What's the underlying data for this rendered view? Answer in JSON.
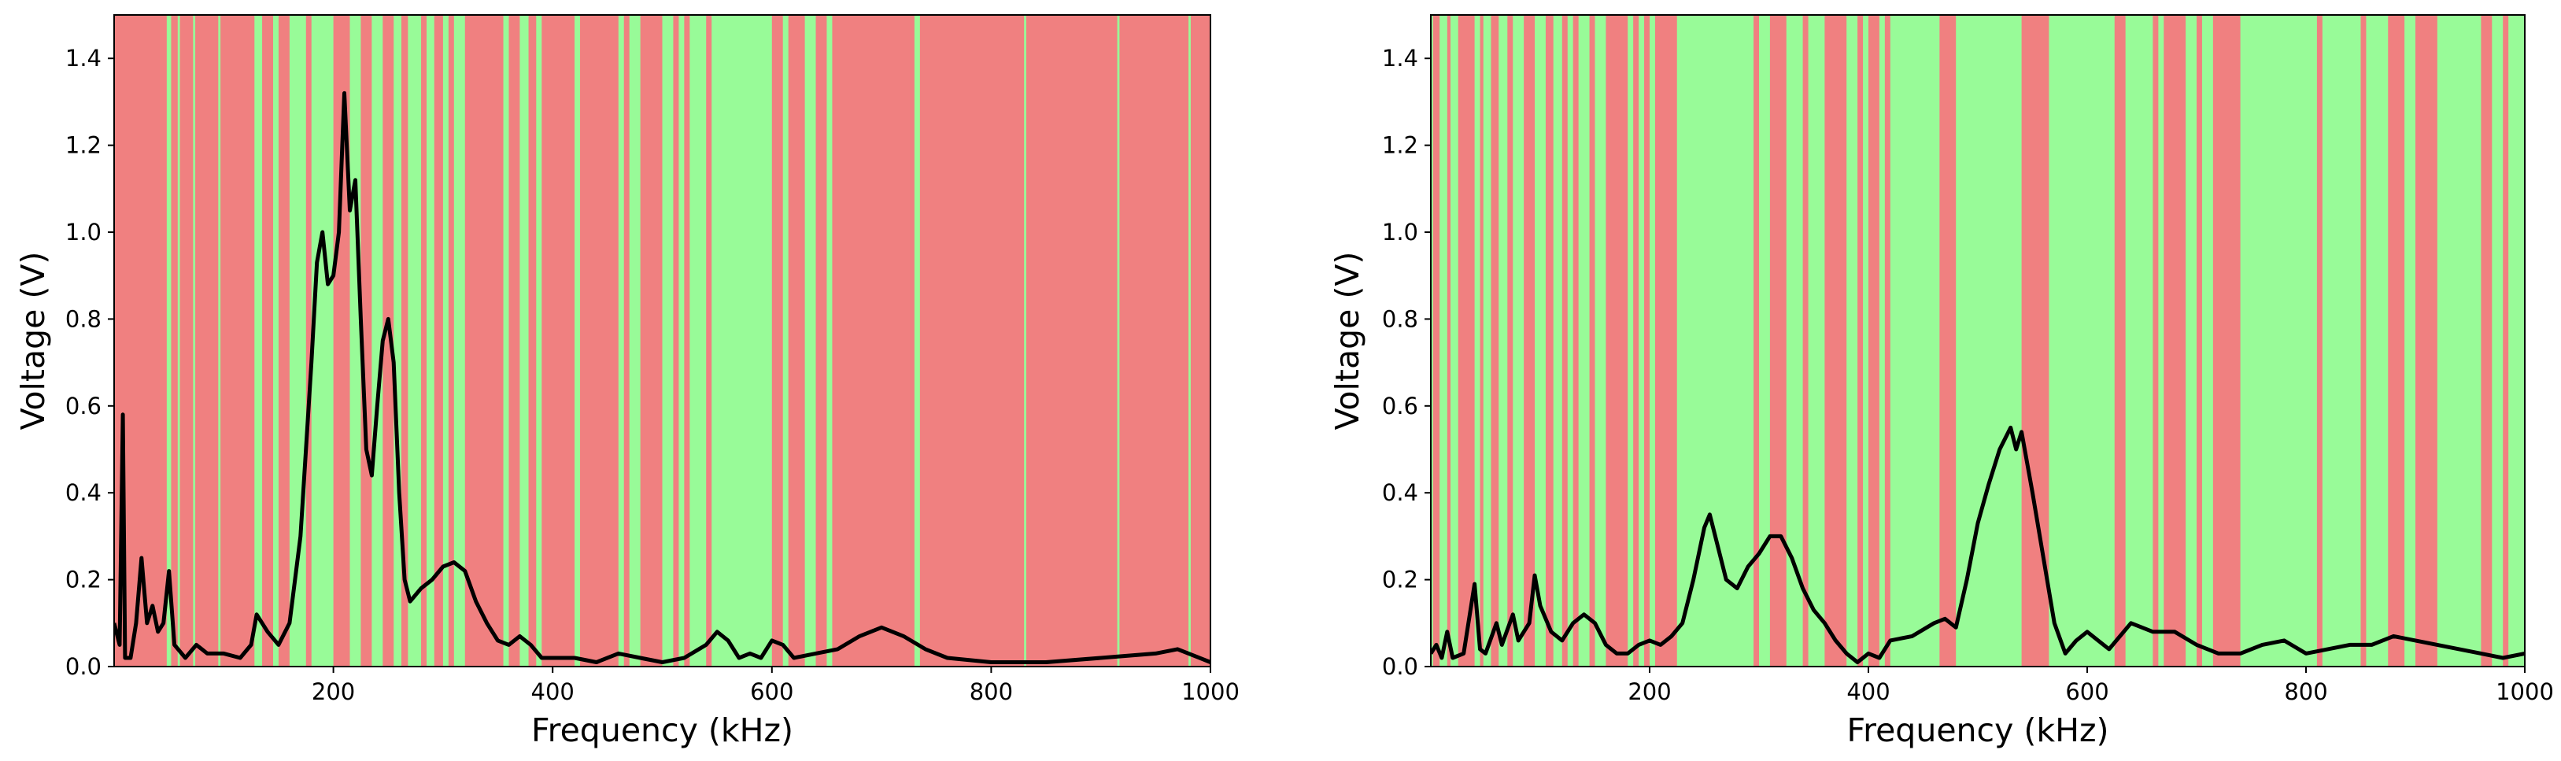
{
  "chart_data": [
    {
      "type": "line",
      "xlabel": "Frequency (kHz)",
      "ylabel": "Voltage (V)",
      "xlim": [
        0,
        1000
      ],
      "ylim": [
        0,
        1.5
      ],
      "xticks": [
        200,
        400,
        600,
        800,
        1000
      ],
      "yticks": [
        {
          "value": 0,
          "label": "0.0"
        },
        {
          "value": 0.2,
          "label": "0.2"
        },
        {
          "value": 0.4,
          "label": "0.4"
        },
        {
          "value": 0.6,
          "label": "0.6"
        },
        {
          "value": 0.8,
          "label": "0.8"
        },
        {
          "value": 1.0,
          "label": "1.0"
        },
        {
          "value": 1.2,
          "label": "1.2"
        },
        {
          "value": 1.4,
          "label": "1.4"
        }
      ],
      "background_color": "#f08080",
      "region_color": "#98fb98",
      "regions": [
        [
          48,
          52
        ],
        [
          58,
          60
        ],
        [
          72,
          74
        ],
        [
          95,
          97
        ],
        [
          128,
          135
        ],
        [
          145,
          150
        ],
        [
          160,
          175
        ],
        [
          180,
          200
        ],
        [
          215,
          225
        ],
        [
          235,
          245
        ],
        [
          255,
          262
        ],
        [
          268,
          280
        ],
        [
          285,
          292
        ],
        [
          300,
          305
        ],
        [
          310,
          320
        ],
        [
          355,
          360
        ],
        [
          370,
          378
        ],
        [
          385,
          390
        ],
        [
          420,
          425
        ],
        [
          460,
          465
        ],
        [
          470,
          480
        ],
        [
          500,
          510
        ],
        [
          515,
          520
        ],
        [
          525,
          540
        ],
        [
          545,
          600
        ],
        [
          610,
          615
        ],
        [
          630,
          640
        ],
        [
          650,
          655
        ],
        [
          730,
          735
        ],
        [
          830,
          832
        ],
        [
          915,
          917
        ],
        [
          980,
          982
        ]
      ],
      "color": "#000000",
      "x": [
        0,
        5,
        8,
        10,
        15,
        20,
        25,
        30,
        35,
        40,
        45,
        50,
        55,
        65,
        75,
        85,
        100,
        115,
        125,
        130,
        140,
        150,
        160,
        170,
        180,
        185,
        190,
        195,
        200,
        205,
        210,
        215,
        220,
        225,
        230,
        235,
        240,
        245,
        250,
        255,
        260,
        265,
        270,
        280,
        290,
        300,
        310,
        320,
        330,
        340,
        350,
        360,
        370,
        380,
        390,
        400,
        420,
        440,
        460,
        480,
        500,
        520,
        540,
        550,
        560,
        570,
        580,
        590,
        600,
        610,
        620,
        640,
        660,
        680,
        700,
        720,
        740,
        760,
        800,
        850,
        900,
        950,
        970,
        1000
      ],
      "values": [
        0.1,
        0.05,
        0.58,
        0.02,
        0.02,
        0.1,
        0.25,
        0.1,
        0.14,
        0.08,
        0.1,
        0.22,
        0.05,
        0.02,
        0.05,
        0.03,
        0.03,
        0.02,
        0.05,
        0.12,
        0.08,
        0.05,
        0.1,
        0.3,
        0.7,
        0.93,
        1.0,
        0.88,
        0.9,
        1.0,
        1.32,
        1.05,
        1.12,
        0.8,
        0.5,
        0.44,
        0.6,
        0.75,
        0.8,
        0.7,
        0.4,
        0.2,
        0.15,
        0.18,
        0.2,
        0.23,
        0.24,
        0.22,
        0.15,
        0.1,
        0.06,
        0.05,
        0.07,
        0.05,
        0.02,
        0.02,
        0.02,
        0.01,
        0.03,
        0.02,
        0.01,
        0.02,
        0.05,
        0.08,
        0.06,
        0.02,
        0.03,
        0.02,
        0.06,
        0.05,
        0.02,
        0.03,
        0.04,
        0.07,
        0.09,
        0.07,
        0.04,
        0.02,
        0.01,
        0.01,
        0.02,
        0.03,
        0.04,
        0.01
      ]
    },
    {
      "type": "line",
      "xlabel": "Frequency (kHz)",
      "ylabel": "Voltage (V)",
      "xlim": [
        0,
        1000
      ],
      "ylim": [
        0,
        1.5
      ],
      "xticks": [
        200,
        400,
        600,
        800,
        1000
      ],
      "yticks": [
        {
          "value": 0,
          "label": "0.0"
        },
        {
          "value": 0.2,
          "label": "0.2"
        },
        {
          "value": 0.4,
          "label": "0.4"
        },
        {
          "value": 0.6,
          "label": "0.6"
        },
        {
          "value": 0.8,
          "label": "0.8"
        },
        {
          "value": 1.0,
          "label": "1.0"
        },
        {
          "value": 1.2,
          "label": "1.2"
        },
        {
          "value": 1.4,
          "label": "1.4"
        }
      ],
      "background_color": "#98fb98",
      "region_color": "#f08080",
      "regions": [
        [
          2,
          8
        ],
        [
          15,
          18
        ],
        [
          25,
          40
        ],
        [
          45,
          48
        ],
        [
          55,
          62
        ],
        [
          70,
          75
        ],
        [
          85,
          95
        ],
        [
          105,
          112
        ],
        [
          120,
          125
        ],
        [
          130,
          135
        ],
        [
          145,
          150
        ],
        [
          160,
          180
        ],
        [
          185,
          190
        ],
        [
          195,
          200
        ],
        [
          205,
          225
        ],
        [
          295,
          300
        ],
        [
          310,
          325
        ],
        [
          340,
          345
        ],
        [
          360,
          380
        ],
        [
          390,
          395
        ],
        [
          400,
          410
        ],
        [
          415,
          420
        ],
        [
          465,
          480
        ],
        [
          540,
          565
        ],
        [
          625,
          635
        ],
        [
          660,
          665
        ],
        [
          670,
          690
        ],
        [
          700,
          705
        ],
        [
          715,
          740
        ],
        [
          810,
          815
        ],
        [
          850,
          855
        ],
        [
          875,
          890
        ],
        [
          900,
          920
        ],
        [
          960,
          970
        ],
        [
          980,
          985
        ]
      ],
      "color": "#000000",
      "x": [
        0,
        5,
        10,
        15,
        20,
        30,
        40,
        45,
        50,
        60,
        65,
        75,
        80,
        90,
        95,
        100,
        110,
        120,
        130,
        140,
        150,
        160,
        170,
        180,
        190,
        200,
        210,
        220,
        230,
        240,
        250,
        255,
        260,
        270,
        280,
        290,
        300,
        310,
        320,
        330,
        340,
        350,
        360,
        370,
        380,
        390,
        400,
        410,
        420,
        440,
        460,
        470,
        480,
        490,
        500,
        510,
        520,
        530,
        535,
        540,
        550,
        560,
        570,
        580,
        590,
        600,
        610,
        620,
        640,
        660,
        680,
        700,
        720,
        740,
        760,
        780,
        800,
        820,
        840,
        860,
        880,
        900,
        920,
        940,
        960,
        980,
        1000
      ],
      "values": [
        0.03,
        0.05,
        0.02,
        0.08,
        0.02,
        0.03,
        0.19,
        0.04,
        0.03,
        0.1,
        0.05,
        0.12,
        0.06,
        0.1,
        0.21,
        0.14,
        0.08,
        0.06,
        0.1,
        0.12,
        0.1,
        0.05,
        0.03,
        0.03,
        0.05,
        0.06,
        0.05,
        0.07,
        0.1,
        0.2,
        0.32,
        0.35,
        0.3,
        0.2,
        0.18,
        0.23,
        0.26,
        0.3,
        0.3,
        0.25,
        0.18,
        0.13,
        0.1,
        0.06,
        0.03,
        0.01,
        0.03,
        0.02,
        0.06,
        0.07,
        0.1,
        0.11,
        0.09,
        0.2,
        0.33,
        0.42,
        0.5,
        0.55,
        0.5,
        0.54,
        0.4,
        0.25,
        0.1,
        0.03,
        0.06,
        0.08,
        0.06,
        0.04,
        0.1,
        0.08,
        0.08,
        0.05,
        0.03,
        0.03,
        0.05,
        0.06,
        0.03,
        0.04,
        0.05,
        0.05,
        0.07,
        0.06,
        0.05,
        0.04,
        0.03,
        0.02,
        0.03
      ]
    }
  ]
}
